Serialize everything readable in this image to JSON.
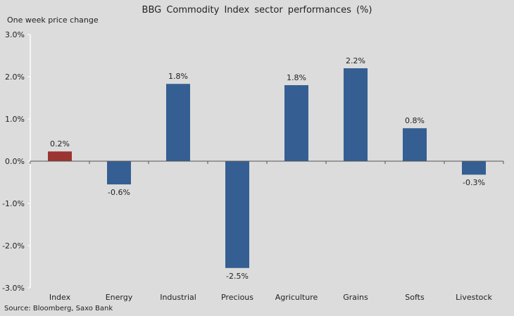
{
  "chart_data": {
    "type": "bar",
    "title": "BBG  Commodity  Index sector performances (%)",
    "ylabel": "One week price change",
    "xlabel": "",
    "source": "Source: Bloomberg, Saxo Bank",
    "categories": [
      "Index",
      "Energy",
      "Industrial",
      "Precious",
      "Agriculture",
      "Grains",
      "Softs",
      "Livestock"
    ],
    "values": [
      0.23,
      -0.55,
      1.83,
      -2.53,
      1.8,
      2.2,
      0.78,
      -0.32
    ],
    "data_labels": [
      "0.2%",
      "-0.6%",
      "1.8%",
      "-2.5%",
      "1.8%",
      "2.2%",
      "0.8%",
      "-0.3%"
    ],
    "ylim": [
      -3,
      3
    ],
    "yticks": [
      3,
      2,
      1,
      0,
      -1,
      -2,
      -3
    ],
    "ytick_labels": [
      "3.0%",
      "2.0%",
      "1.0%",
      "0.0%",
      "-1.0%",
      "-2.0%",
      "-3.0%"
    ],
    "grid": false,
    "colors": {
      "highlight": "#9b3532",
      "default": "#355f92",
      "background": "#dcdcdc"
    }
  }
}
